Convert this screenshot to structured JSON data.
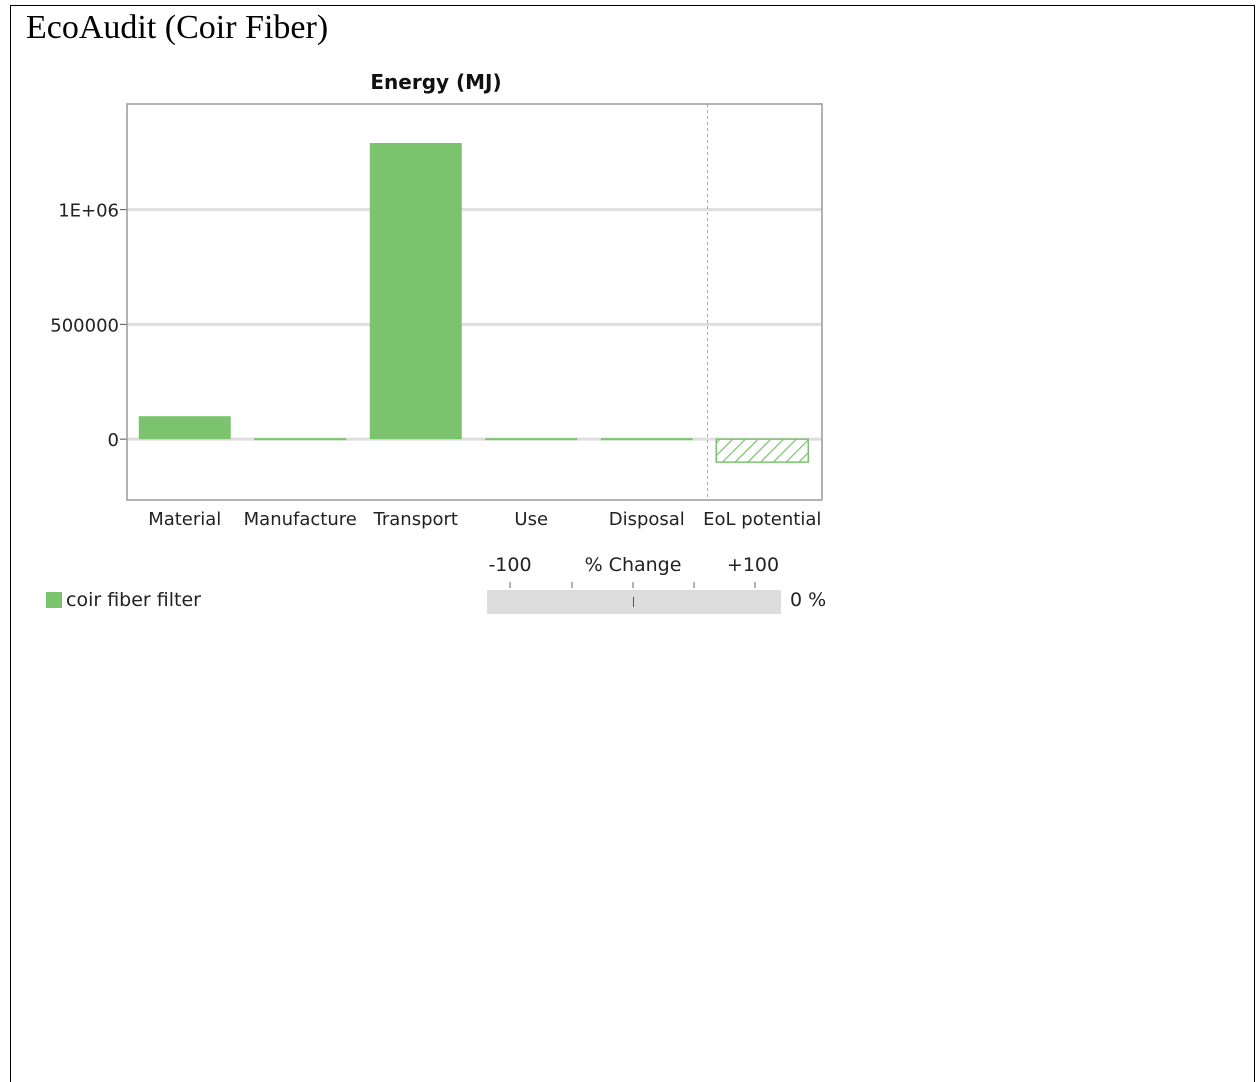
{
  "page": {
    "title": "EcoAudit (Coir Fiber)"
  },
  "chart_data": {
    "type": "bar",
    "title": "Energy (MJ)",
    "categories": [
      "Material",
      "Manufacture",
      "Transport",
      "Use",
      "Disposal",
      "EoL potential"
    ],
    "series": [
      {
        "name": "coir fiber filter",
        "values": [
          100000,
          0,
          1290000,
          0,
          0,
          -100000
        ]
      }
    ],
    "yticks": [
      0,
      500000,
      1000000
    ],
    "ytick_labels": [
      "0",
      "500000",
      "1E+06"
    ],
    "ylim": [
      -265000,
      1460000
    ],
    "grid": true,
    "legend_position": "bottom-left",
    "hatched_categories": [
      "EoL potential"
    ],
    "colors": {
      "bar": "#7bc46d",
      "grid": "#dedede",
      "axis": "#999999"
    }
  },
  "legend": {
    "label": "coir fiber filter"
  },
  "change_scale": {
    "min_label": "-100",
    "title": "% Change",
    "max_label": "+100",
    "value": "0 %"
  }
}
